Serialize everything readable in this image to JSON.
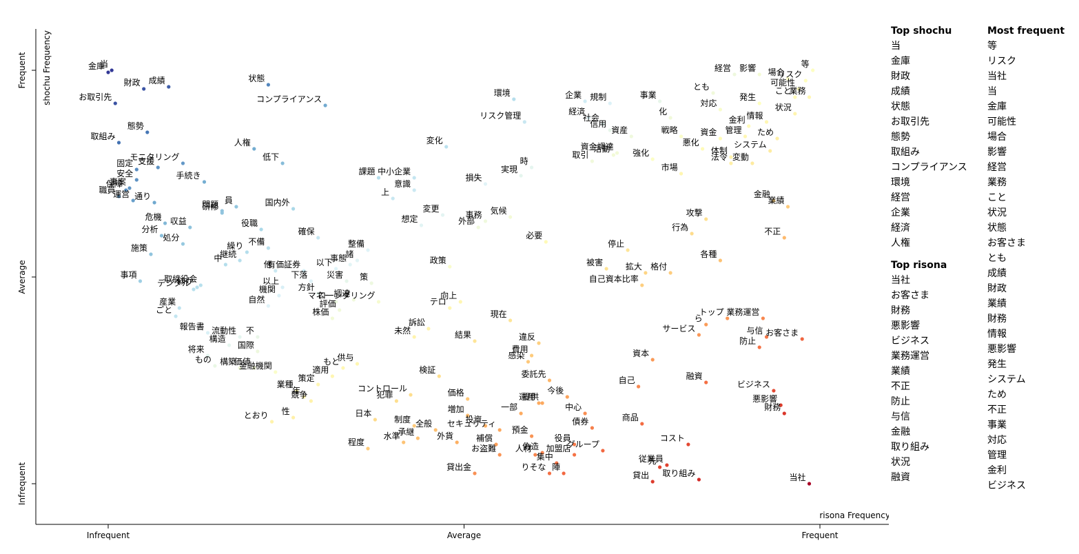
{
  "chart_data": {
    "type": "scatter",
    "xlabel": "risona Frequency",
    "ylabel": "shochu Frequency",
    "xlim": [
      -0.2,
      2.2
    ],
    "ylim": [
      -0.2,
      2.2
    ],
    "x_ticks": [
      {
        "value": 0,
        "label": "Infrequent"
      },
      {
        "value": 1,
        "label": "Average"
      },
      {
        "value": 2,
        "label": "Frequent"
      }
    ],
    "y_ticks": [
      {
        "value": 0,
        "label": "Infrequent"
      },
      {
        "value": 1,
        "label": "Average"
      },
      {
        "value": 2,
        "label": "Frequent"
      }
    ],
    "color_scale": [
      "#313695",
      "#4575b4",
      "#74add1",
      "#abd9e9",
      "#e0f3f8",
      "#ffffbf",
      "#fee090",
      "#fdae61",
      "#f46d43",
      "#d73027",
      "#a50026"
    ],
    "points": [
      {
        "term": "金庫",
        "x": 0.0,
        "y": 1.99
      },
      {
        "term": "当",
        "x": 0.01,
        "y": 2.0
      },
      {
        "term": "財政",
        "x": 0.1,
        "y": 1.91
      },
      {
        "term": "成績",
        "x": 0.17,
        "y": 1.92
      },
      {
        "term": "お取引先",
        "x": 0.02,
        "y": 1.84
      },
      {
        "term": "態勢",
        "x": 0.11,
        "y": 1.7
      },
      {
        "term": "取組み",
        "x": 0.03,
        "y": 1.65
      },
      {
        "term": "状態",
        "x": 0.45,
        "y": 1.93
      },
      {
        "term": "コンプライアンス",
        "x": 0.61,
        "y": 1.83
      },
      {
        "term": "人権",
        "x": 0.41,
        "y": 1.62
      },
      {
        "term": "低下",
        "x": 0.49,
        "y": 1.55
      },
      {
        "term": "支援",
        "x": 0.14,
        "y": 1.53
      },
      {
        "term": "固定",
        "x": 0.08,
        "y": 1.52
      },
      {
        "term": "モニタリング",
        "x": 0.21,
        "y": 1.55
      },
      {
        "term": "安全",
        "x": 0.08,
        "y": 1.47
      },
      {
        "term": "事案",
        "x": 0.06,
        "y": 1.43
      },
      {
        "term": "保障",
        "x": 0.05,
        "y": 1.42
      },
      {
        "term": "手続き",
        "x": 0.27,
        "y": 1.46
      },
      {
        "term": "職員",
        "x": 0.03,
        "y": 1.39
      },
      {
        "term": "運営",
        "x": 0.07,
        "y": 1.37
      },
      {
        "term": "問題",
        "x": 0.32,
        "y": 1.32
      },
      {
        "term": "研修",
        "x": 0.32,
        "y": 1.31
      },
      {
        "term": "員",
        "x": 0.36,
        "y": 1.34
      },
      {
        "term": "国内外",
        "x": 0.52,
        "y": 1.33
      },
      {
        "term": "危機",
        "x": 0.16,
        "y": 1.26
      },
      {
        "term": "通り",
        "x": 0.13,
        "y": 1.36
      },
      {
        "term": "収益",
        "x": 0.23,
        "y": 1.24
      },
      {
        "term": "分析",
        "x": 0.15,
        "y": 1.2
      },
      {
        "term": "処分",
        "x": 0.21,
        "y": 1.16
      },
      {
        "term": "施策",
        "x": 0.12,
        "y": 1.11
      },
      {
        "term": "役職",
        "x": 0.43,
        "y": 1.23
      },
      {
        "term": "繰り",
        "x": 0.39,
        "y": 1.12
      },
      {
        "term": "不備",
        "x": 0.45,
        "y": 1.14
      },
      {
        "term": "確保",
        "x": 0.59,
        "y": 1.19
      },
      {
        "term": "中",
        "x": 0.33,
        "y": 1.06
      },
      {
        "term": "継続",
        "x": 0.37,
        "y": 1.08
      },
      {
        "term": "他",
        "x": 0.47,
        "y": 1.03
      },
      {
        "term": "事項",
        "x": 0.09,
        "y": 0.98
      },
      {
        "term": "デジタル",
        "x": 0.24,
        "y": 0.94
      },
      {
        "term": "ほか",
        "x": 0.25,
        "y": 0.95
      },
      {
        "term": "取締役会",
        "x": 0.26,
        "y": 0.96
      },
      {
        "term": "産業",
        "x": 0.2,
        "y": 0.85
      },
      {
        "term": "ごと",
        "x": 0.19,
        "y": 0.81
      },
      {
        "term": "以上",
        "x": 0.49,
        "y": 0.95
      },
      {
        "term": "機関",
        "x": 0.48,
        "y": 0.91
      },
      {
        "term": "自然",
        "x": 0.45,
        "y": 0.86
      },
      {
        "term": "有価証券",
        "x": 0.55,
        "y": 1.03
      },
      {
        "term": "下落",
        "x": 0.57,
        "y": 0.98
      },
      {
        "term": "以下",
        "x": 0.64,
        "y": 1.04
      },
      {
        "term": "方針",
        "x": 0.59,
        "y": 0.92
      },
      {
        "term": "災害",
        "x": 0.67,
        "y": 0.98
      },
      {
        "term": "マネー",
        "x": 0.64,
        "y": 0.88
      },
      {
        "term": "評価",
        "x": 0.65,
        "y": 0.84
      },
      {
        "term": "調達",
        "x": 0.69,
        "y": 0.89
      },
      {
        "term": "株価",
        "x": 0.63,
        "y": 0.8
      },
      {
        "term": "整備",
        "x": 0.73,
        "y": 1.13
      },
      {
        "term": "諸",
        "x": 0.7,
        "y": 1.08
      },
      {
        "term": "事態",
        "x": 0.68,
        "y": 1.06
      },
      {
        "term": "策",
        "x": 0.74,
        "y": 0.97
      },
      {
        "term": "ローンダリング",
        "x": 0.76,
        "y": 0.88
      },
      {
        "term": "報告書",
        "x": 0.28,
        "y": 0.73
      },
      {
        "term": "流動性",
        "x": 0.37,
        "y": 0.71
      },
      {
        "term": "不",
        "x": 0.42,
        "y": 0.71
      },
      {
        "term": "構造",
        "x": 0.34,
        "y": 0.67
      },
      {
        "term": "国際",
        "x": 0.42,
        "y": 0.64
      },
      {
        "term": "将来",
        "x": 0.28,
        "y": 0.62
      },
      {
        "term": "もの",
        "x": 0.3,
        "y": 0.57
      },
      {
        "term": "構築",
        "x": 0.37,
        "y": 0.56
      },
      {
        "term": "価値",
        "x": 0.41,
        "y": 0.56
      },
      {
        "term": "金融機関",
        "x": 0.47,
        "y": 0.54
      },
      {
        "term": "環境",
        "x": 1.14,
        "y": 1.86
      },
      {
        "term": "リスク管理",
        "x": 1.17,
        "y": 1.75
      },
      {
        "term": "変化",
        "x": 0.95,
        "y": 1.63
      },
      {
        "term": "課題",
        "x": 0.76,
        "y": 1.48
      },
      {
        "term": "中小企業",
        "x": 0.86,
        "y": 1.48
      },
      {
        "term": "意識",
        "x": 0.86,
        "y": 1.42
      },
      {
        "term": "上",
        "x": 0.8,
        "y": 1.38
      },
      {
        "term": "損失",
        "x": 1.06,
        "y": 1.45
      },
      {
        "term": "実現",
        "x": 1.16,
        "y": 1.49
      },
      {
        "term": "時",
        "x": 1.19,
        "y": 1.53
      },
      {
        "term": "変更",
        "x": 0.94,
        "y": 1.3
      },
      {
        "term": "想定",
        "x": 0.88,
        "y": 1.25
      },
      {
        "term": "事務",
        "x": 1.06,
        "y": 1.27
      },
      {
        "term": "気候",
        "x": 1.13,
        "y": 1.29
      },
      {
        "term": "外部",
        "x": 1.04,
        "y": 1.24
      },
      {
        "term": "必要",
        "x": 1.23,
        "y": 1.17
      },
      {
        "term": "政策",
        "x": 0.96,
        "y": 1.05
      },
      {
        "term": "テロ",
        "x": 0.96,
        "y": 0.85
      },
      {
        "term": "向上",
        "x": 0.99,
        "y": 0.88
      },
      {
        "term": "訴訟",
        "x": 0.9,
        "y": 0.75
      },
      {
        "term": "未然",
        "x": 0.86,
        "y": 0.71
      },
      {
        "term": "結果",
        "x": 1.03,
        "y": 0.69
      },
      {
        "term": "現在",
        "x": 1.13,
        "y": 0.79
      },
      {
        "term": "違反",
        "x": 1.21,
        "y": 0.68
      },
      {
        "term": "費用",
        "x": 1.19,
        "y": 0.62
      },
      {
        "term": "感染",
        "x": 1.18,
        "y": 0.59
      },
      {
        "term": "供与",
        "x": 0.7,
        "y": 0.58
      },
      {
        "term": "もと",
        "x": 0.66,
        "y": 0.56
      },
      {
        "term": "適用",
        "x": 0.63,
        "y": 0.52
      },
      {
        "term": "策定",
        "x": 0.59,
        "y": 0.48
      },
      {
        "term": "業種",
        "x": 0.53,
        "y": 0.45
      },
      {
        "term": "年",
        "x": 0.55,
        "y": 0.42
      },
      {
        "term": "競争",
        "x": 0.57,
        "y": 0.4
      },
      {
        "term": "性",
        "x": 0.52,
        "y": 0.32
      },
      {
        "term": "とおり",
        "x": 0.46,
        "y": 0.3
      },
      {
        "term": "検証",
        "x": 0.93,
        "y": 0.52
      },
      {
        "term": "コントロール",
        "x": 0.85,
        "y": 0.43
      },
      {
        "term": "価格",
        "x": 1.01,
        "y": 0.41
      },
      {
        "term": "犯罪",
        "x": 0.81,
        "y": 0.4
      },
      {
        "term": "日本",
        "x": 0.75,
        "y": 0.31
      },
      {
        "term": "制度",
        "x": 0.86,
        "y": 0.28
      },
      {
        "term": "増加",
        "x": 1.01,
        "y": 0.33
      },
      {
        "term": "投資",
        "x": 1.06,
        "y": 0.28
      },
      {
        "term": "全般",
        "x": 0.92,
        "y": 0.26
      },
      {
        "term": "程度",
        "x": 0.73,
        "y": 0.17
      },
      {
        "term": "水準",
        "x": 0.83,
        "y": 0.2
      },
      {
        "term": "承継",
        "x": 0.87,
        "y": 0.22
      },
      {
        "term": "外貨",
        "x": 0.98,
        "y": 0.2
      },
      {
        "term": "提供",
        "x": 1.22,
        "y": 0.39
      },
      {
        "term": "委託先",
        "x": 1.24,
        "y": 0.5
      },
      {
        "term": "運用",
        "x": 1.21,
        "y": 0.39
      },
      {
        "term": "今後",
        "x": 1.29,
        "y": 0.42
      },
      {
        "term": "一部",
        "x": 1.16,
        "y": 0.34
      },
      {
        "term": "セキュリティ",
        "x": 1.1,
        "y": 0.26
      },
      {
        "term": "補償",
        "x": 1.09,
        "y": 0.19
      },
      {
        "term": "お盗難",
        "x": 1.1,
        "y": 0.14
      },
      {
        "term": "貸出金",
        "x": 1.03,
        "y": 0.05
      },
      {
        "term": "預金",
        "x": 1.19,
        "y": 0.23
      },
      {
        "term": "偽造",
        "x": 1.22,
        "y": 0.15
      },
      {
        "term": "人材",
        "x": 1.2,
        "y": 0.14
      },
      {
        "term": "りそな",
        "x": 1.24,
        "y": 0.05
      },
      {
        "term": "集中",
        "x": 1.26,
        "y": 0.1
      },
      {
        "term": "陣",
        "x": 1.28,
        "y": 0.05
      },
      {
        "term": "中心",
        "x": 1.34,
        "y": 0.34
      },
      {
        "term": "債券",
        "x": 1.36,
        "y": 0.27
      },
      {
        "term": "役員",
        "x": 1.31,
        "y": 0.19
      },
      {
        "term": "グループ",
        "x": 1.39,
        "y": 0.16
      },
      {
        "term": "加盟店",
        "x": 1.31,
        "y": 0.14
      },
      {
        "term": "企業",
        "x": 1.34,
        "y": 1.85
      },
      {
        "term": "規制",
        "x": 1.41,
        "y": 1.84
      },
      {
        "term": "経済",
        "x": 1.35,
        "y": 1.77
      },
      {
        "term": "社会",
        "x": 1.39,
        "y": 1.74
      },
      {
        "term": "信用",
        "x": 1.41,
        "y": 1.71
      },
      {
        "term": "資産",
        "x": 1.47,
        "y": 1.68
      },
      {
        "term": "事業",
        "x": 1.55,
        "y": 1.85
      },
      {
        "term": "化",
        "x": 1.58,
        "y": 1.77
      },
      {
        "term": "戦略",
        "x": 1.61,
        "y": 1.68
      },
      {
        "term": "資金調達",
        "x": 1.43,
        "y": 1.6
      },
      {
        "term": "強化",
        "x": 1.53,
        "y": 1.57
      },
      {
        "term": "取引",
        "x": 1.36,
        "y": 1.56
      },
      {
        "term": "活動",
        "x": 1.42,
        "y": 1.59
      },
      {
        "term": "悪化",
        "x": 1.67,
        "y": 1.62
      },
      {
        "term": "とも",
        "x": 1.7,
        "y": 1.89
      },
      {
        "term": "対応",
        "x": 1.72,
        "y": 1.81
      },
      {
        "term": "経営",
        "x": 1.76,
        "y": 1.98
      },
      {
        "term": "影響",
        "x": 1.83,
        "y": 1.98
      },
      {
        "term": "発生",
        "x": 1.83,
        "y": 1.84
      },
      {
        "term": "情報",
        "x": 1.85,
        "y": 1.75
      },
      {
        "term": "金利",
        "x": 1.8,
        "y": 1.73
      },
      {
        "term": "資金",
        "x": 1.72,
        "y": 1.67
      },
      {
        "term": "管理",
        "x": 1.79,
        "y": 1.68
      },
      {
        "term": "ため",
        "x": 1.88,
        "y": 1.67
      },
      {
        "term": "システム",
        "x": 1.86,
        "y": 1.61
      },
      {
        "term": "体制",
        "x": 1.75,
        "y": 1.58
      },
      {
        "term": "法令",
        "x": 1.75,
        "y": 1.55
      },
      {
        "term": "変動",
        "x": 1.81,
        "y": 1.55
      },
      {
        "term": "市場",
        "x": 1.61,
        "y": 1.5
      },
      {
        "term": "等",
        "x": 1.98,
        "y": 2.0
      },
      {
        "term": "場合",
        "x": 1.91,
        "y": 1.96
      },
      {
        "term": "リスク",
        "x": 1.96,
        "y": 1.95
      },
      {
        "term": "可能性",
        "x": 1.94,
        "y": 1.91
      },
      {
        "term": "こと",
        "x": 1.93,
        "y": 1.87
      },
      {
        "term": "業務",
        "x": 1.97,
        "y": 1.87
      },
      {
        "term": "状況",
        "x": 1.93,
        "y": 1.79
      },
      {
        "term": "金融",
        "x": 1.87,
        "y": 1.37
      },
      {
        "term": "業績",
        "x": 1.91,
        "y": 1.34
      },
      {
        "term": "不正",
        "x": 1.9,
        "y": 1.19
      },
      {
        "term": "攻撃",
        "x": 1.68,
        "y": 1.28
      },
      {
        "term": "行為",
        "x": 1.64,
        "y": 1.21
      },
      {
        "term": "停止",
        "x": 1.46,
        "y": 1.13
      },
      {
        "term": "各種",
        "x": 1.72,
        "y": 1.08
      },
      {
        "term": "被害",
        "x": 1.4,
        "y": 1.04
      },
      {
        "term": "拡大",
        "x": 1.51,
        "y": 1.02
      },
      {
        "term": "格付",
        "x": 1.58,
        "y": 1.02
      },
      {
        "term": "自己資本比率",
        "x": 1.5,
        "y": 0.96
      },
      {
        "term": "ら",
        "x": 1.68,
        "y": 0.77
      },
      {
        "term": "トップ",
        "x": 1.74,
        "y": 0.8
      },
      {
        "term": "業務運営",
        "x": 1.84,
        "y": 0.8
      },
      {
        "term": "サービス",
        "x": 1.66,
        "y": 0.72
      },
      {
        "term": "与信",
        "x": 1.85,
        "y": 0.71
      },
      {
        "term": "防止",
        "x": 1.83,
        "y": 0.66
      },
      {
        "term": "お客さま",
        "x": 1.95,
        "y": 0.7
      },
      {
        "term": "資本",
        "x": 1.53,
        "y": 0.6
      },
      {
        "term": "自己",
        "x": 1.49,
        "y": 0.47
      },
      {
        "term": "融資",
        "x": 1.68,
        "y": 0.49
      },
      {
        "term": "ビジネス",
        "x": 1.87,
        "y": 0.45
      },
      {
        "term": "悪影響",
        "x": 1.89,
        "y": 0.38
      },
      {
        "term": "財務",
        "x": 1.9,
        "y": 0.34
      },
      {
        "term": "商品",
        "x": 1.5,
        "y": 0.29
      },
      {
        "term": "コスト",
        "x": 1.63,
        "y": 0.19
      },
      {
        "term": "従業員",
        "x": 1.57,
        "y": 0.09
      },
      {
        "term": "先",
        "x": 1.55,
        "y": 0.08
      },
      {
        "term": "貸出",
        "x": 1.53,
        "y": 0.01
      },
      {
        "term": "取り組み",
        "x": 1.66,
        "y": 0.02
      },
      {
        "term": "当社",
        "x": 1.97,
        "y": 0.0
      }
    ]
  },
  "legend": {
    "top_shochu_title": "Top shochu",
    "top_shochu": [
      "当",
      "金庫",
      "財政",
      "成績",
      "状態",
      "お取引先",
      "態勢",
      "取組み",
      "コンプライアンス",
      "環境",
      "経営",
      "企業",
      "経済",
      "人権"
    ],
    "top_risona_title": "Top risona",
    "top_risona": [
      "当社",
      "お客さま",
      "財務",
      "悪影響",
      "ビジネス",
      "業務運営",
      "業績",
      "不正",
      "防止",
      "与信",
      "金融",
      "取り組み",
      "状況",
      "融資"
    ],
    "most_frequent_title": "Most frequent",
    "most_frequent": [
      "等",
      "リスク",
      "当社",
      "当",
      "金庫",
      "可能性",
      "場合",
      "影響",
      "経営",
      "業務",
      "こと",
      "状況",
      "状態",
      "お客さま",
      "とも",
      "成績",
      "財政",
      "業績",
      "財務",
      "情報",
      "悪影響",
      "発生",
      "システム",
      "ため",
      "不正",
      "事業",
      "対応",
      "管理",
      "金利",
      "ビジネス"
    ]
  }
}
